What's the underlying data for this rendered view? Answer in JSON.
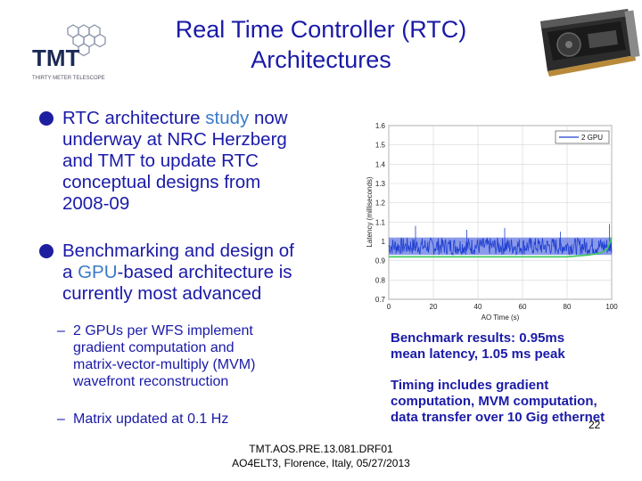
{
  "header": {
    "title_line1": "Real Time Controller (RTC)",
    "title_line2": "Architectures",
    "logo_text": "TMT",
    "logo_subtext": "THIRTY METER TELESCOPE"
  },
  "bullets": [
    {
      "lines": [
        "RTC architecture study now",
        "underway at NRC Herzberg",
        "and TMT to update RTC",
        "conceptual designs from",
        "2008-09"
      ]
    },
    {
      "line1_pre": "Benchmarking and design of",
      "line2_pre": "a ",
      "line2_highlight": "GPU",
      "line2_post": "-based architecture is",
      "line3": "currently most advanced"
    }
  ],
  "subbullets": [
    {
      "dash": "–",
      "lines": [
        "2 GPUs per WFS implement",
        "gradient computation and",
        "matrix-vector-multiply (MVM)",
        "wavefront reconstruction"
      ]
    },
    {
      "dash": "–",
      "lines": [
        "Matrix updated at 0.1 Hz"
      ]
    }
  ],
  "benchmark": {
    "p1": [
      "Benchmark results:  0.95ms",
      "mean latency, 1.05 ms peak"
    ],
    "p2": [
      "Timing includes gradient",
      "computation, MVM computation,",
      "data transfer over 10 Gig ethernet"
    ]
  },
  "footer": {
    "line1": "TMT.AOS.PRE.13.081.DRF01",
    "line2": "AO4ELT3, Florence, Italy, 05/27/2013",
    "page_number": "22"
  },
  "chart_data": {
    "type": "line",
    "xlabel": "AO Time (s)",
    "ylabel": "Latency (milliseconds)",
    "xlim": [
      0,
      100
    ],
    "ylim": [
      0.7,
      1.6
    ],
    "xticks": [
      0,
      20,
      40,
      60,
      80,
      100
    ],
    "yticks": [
      0.7,
      0.8,
      0.9,
      1.0,
      1.1,
      1.2,
      1.3,
      1.4,
      1.5,
      1.6
    ],
    "xtick_labels": [
      "0",
      "20",
      "40",
      "60",
      "80",
      "100"
    ],
    "ytick_labels": [
      "0.7",
      "0.8",
      "0.9",
      "1",
      "1.1",
      "1.2",
      "1.3",
      "1.4",
      "1.5",
      "1.6"
    ],
    "legend_position": "top-right",
    "series": [
      {
        "name": "2 GPU",
        "color": "#1f3fd0",
        "x": [
          0,
          5,
          10,
          20,
          30,
          40,
          50,
          60,
          70,
          80,
          90,
          95,
          98,
          100
        ],
        "y": [
          0.95,
          0.95,
          0.95,
          0.95,
          0.95,
          0.95,
          0.95,
          0.95,
          0.95,
          0.95,
          0.95,
          0.96,
          1.0,
          1.05
        ],
        "band": [
          0.93,
          1.02
        ]
      }
    ],
    "mean_line": {
      "color": "#3cc85a",
      "x": [
        0,
        10,
        20,
        30,
        40,
        50,
        60,
        70,
        80,
        90,
        95,
        98,
        100
      ],
      "y": [
        0.92,
        0.92,
        0.92,
        0.92,
        0.92,
        0.92,
        0.92,
        0.92,
        0.92,
        0.93,
        0.94,
        0.96,
        1.02
      ]
    }
  }
}
